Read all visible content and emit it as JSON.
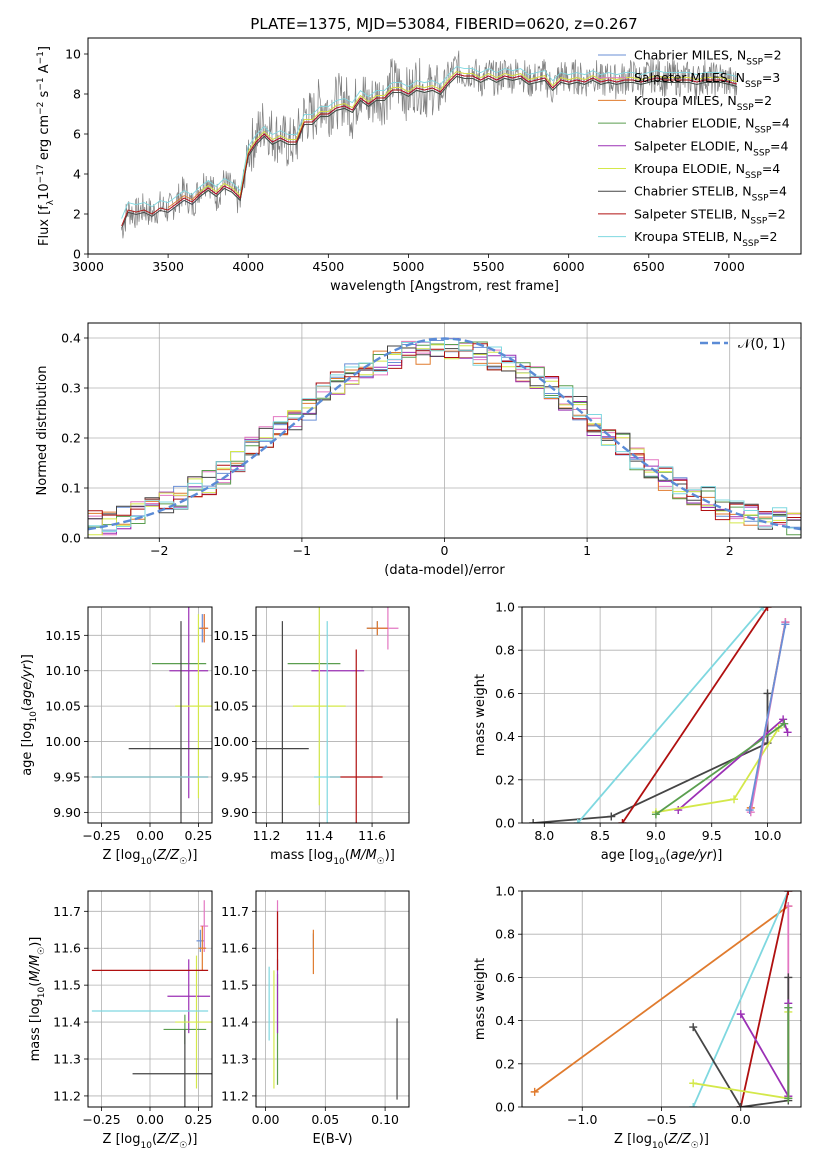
{
  "title": "PLATE=1375, MJD=53084, FIBERID=0620, z=0.267",
  "series_colors": {
    "Chabrier MILES": "#6a8fd6",
    "Salpeter MILES": "#e377c2",
    "Kroupa MILES": "#e07b2e",
    "Chabrier ELODIE": "#5a9e4f",
    "Salpeter ELODIE": "#9b30b5",
    "Kroupa ELODIE": "#d4e84a",
    "Chabrier STELIB": "#454545",
    "Salpeter STELIB": "#b01010",
    "Kroupa STELIB": "#7fd8e0"
  },
  "legend_labels": [
    {
      "name": "Chabrier MILES",
      "nssp": "2"
    },
    {
      "name": "Salpeter MILES",
      "nssp": "3"
    },
    {
      "name": "Kroupa MILES",
      "nssp": "2"
    },
    {
      "name": "Chabrier ELODIE",
      "nssp": "4"
    },
    {
      "name": "Salpeter ELODIE",
      "nssp": "4"
    },
    {
      "name": "Kroupa ELODIE",
      "nssp": "4"
    },
    {
      "name": "Chabrier STELIB",
      "nssp": "4"
    },
    {
      "name": "Salpeter STELIB",
      "nssp": "2"
    },
    {
      "name": "Kroupa STELIB",
      "nssp": "2"
    }
  ],
  "normal_legend": "𝒩(0, 1)",
  "chart_data": [
    {
      "id": "spectrum",
      "type": "line",
      "xlabel": "wavelength [Angstrom, rest frame]",
      "ylabel": "Flux [f_λ 10^-17 erg cm^-2 s^-1 A^-1]",
      "xlim": [
        3000,
        7450
      ],
      "ylim": [
        0,
        10.8
      ],
      "xticks": [
        3000,
        3500,
        4000,
        4500,
        5000,
        5500,
        6000,
        6500,
        7000
      ],
      "yticks": [
        0,
        2,
        4,
        6,
        8,
        10
      ],
      "data_observed": {
        "name": "data",
        "x": [
          3210,
          3250,
          3300,
          3350,
          3400,
          3450,
          3500,
          3550,
          3600,
          3650,
          3700,
          3750,
          3800,
          3850,
          3900,
          3950,
          4000,
          4050,
          4100,
          4150,
          4200,
          4250,
          4300,
          4350,
          4400,
          4450,
          4500,
          4550,
          4600,
          4650,
          4700,
          4750,
          4800,
          4850,
          4900,
          4950,
          5000,
          5050,
          5100,
          5150,
          5200,
          5250,
          5300,
          5350,
          5400,
          5450,
          5500,
          5550,
          5600,
          5650,
          5700,
          5750,
          5800,
          5850,
          5900,
          5950,
          6000,
          6050,
          6100,
          6150,
          6200,
          6250,
          6300,
          6350,
          6400,
          6450,
          6500,
          6550,
          6600,
          6650,
          6700,
          6750,
          6800,
          6850,
          6900,
          6950,
          7000,
          7050
        ],
        "y": [
          1.2,
          2.2,
          2.0,
          2.3,
          2.0,
          2.4,
          2.2,
          2.6,
          3.2,
          2.4,
          3.4,
          3.8,
          2.8,
          3.6,
          3.2,
          2.5,
          5.2,
          5.8,
          6.6,
          6.0,
          5.8,
          5.5,
          5.6,
          7.0,
          6.8,
          7.6,
          7.2,
          7.6,
          7.8,
          7.0,
          8.3,
          7.4,
          7.9,
          7.8,
          8.6,
          8.4,
          7.9,
          8.6,
          8.1,
          8.3,
          8.0,
          8.8,
          9.4,
          9.0,
          9.2,
          8.6,
          9.0,
          8.7,
          9.1,
          8.9,
          9.2,
          8.6,
          8.8,
          8.9,
          8.2,
          9.0,
          8.7,
          8.9,
          8.6,
          9.1,
          8.6,
          8.8,
          8.6,
          8.8,
          8.9,
          8.6,
          8.9,
          9.0,
          8.7,
          8.9,
          8.7,
          8.8,
          8.6,
          8.9,
          8.7,
          8.8,
          8.6,
          8.4
        ]
      },
      "model": {
        "x": [
          3210,
          3250,
          3300,
          3350,
          3400,
          3450,
          3500,
          3550,
          3600,
          3650,
          3700,
          3750,
          3800,
          3850,
          3900,
          3950,
          4000,
          4050,
          4100,
          4150,
          4200,
          4250,
          4300,
          4350,
          4400,
          4450,
          4500,
          4550,
          4600,
          4650,
          4700,
          4750,
          4800,
          4850,
          4900,
          4950,
          5000,
          5050,
          5100,
          5150,
          5200,
          5250,
          5300,
          5350,
          5400,
          5450,
          5500,
          5550,
          5600,
          5650,
          5700,
          5750,
          5800,
          5850,
          5900,
          5950,
          6000,
          6050,
          6100,
          6150,
          6200,
          6250,
          6300,
          6350,
          6400,
          6450,
          6500,
          6550,
          6600,
          6650,
          6700,
          6750,
          6800,
          6850,
          6900,
          6950,
          7000,
          7050
        ],
        "y": [
          1.4,
          2.2,
          2.1,
          2.2,
          2.0,
          2.3,
          2.2,
          2.5,
          2.8,
          2.6,
          3.0,
          3.3,
          3.0,
          3.4,
          3.2,
          2.8,
          5.0,
          5.6,
          6.0,
          5.6,
          5.8,
          5.6,
          5.6,
          6.6,
          6.6,
          7.0,
          7.0,
          7.3,
          7.4,
          7.2,
          7.8,
          7.5,
          7.8,
          7.8,
          8.2,
          8.2,
          8.0,
          8.3,
          8.2,
          8.3,
          8.1,
          8.6,
          9.0,
          8.9,
          8.9,
          8.7,
          8.9,
          8.7,
          8.9,
          8.8,
          8.9,
          8.6,
          8.7,
          8.8,
          8.3,
          8.7,
          8.6,
          8.7,
          8.6,
          8.8,
          8.6,
          8.7,
          8.6,
          8.7,
          8.7,
          8.6,
          8.7,
          8.8,
          8.7,
          8.7,
          8.7,
          8.7,
          8.6,
          8.7,
          8.7,
          8.7,
          8.6,
          8.5
        ]
      }
    },
    {
      "id": "residuals",
      "type": "step",
      "xlabel": "(data-model)/error",
      "ylabel": "Normed distribution",
      "xlim": [
        -2.5,
        2.5
      ],
      "ylim": [
        0,
        0.43
      ],
      "xticks": [
        -2,
        -1,
        0,
        1,
        2
      ],
      "yticks": [
        0.0,
        0.1,
        0.2,
        0.3,
        0.4
      ],
      "bin_edges_start": -2.5,
      "bin_width": 0.1,
      "hist": [
        0.03,
        0.03,
        0.04,
        0.05,
        0.06,
        0.07,
        0.08,
        0.1,
        0.11,
        0.13,
        0.15,
        0.18,
        0.2,
        0.22,
        0.24,
        0.26,
        0.29,
        0.31,
        0.33,
        0.34,
        0.35,
        0.36,
        0.37,
        0.37,
        0.38,
        0.38,
        0.37,
        0.37,
        0.36,
        0.35,
        0.33,
        0.32,
        0.3,
        0.28,
        0.26,
        0.23,
        0.21,
        0.19,
        0.16,
        0.14,
        0.12,
        0.1,
        0.09,
        0.08,
        0.06,
        0.05,
        0.05,
        0.04,
        0.04,
        0.03
      ]
    },
    {
      "id": "age_vs_Z",
      "type": "scatter",
      "xlabel": "Z [log10(Z/Z☉)]",
      "ylabel": "age [log10(age/yr)]",
      "xlim": [
        -0.32,
        0.32
      ],
      "ylim": [
        9.885,
        10.19
      ],
      "xticks": [
        -0.25,
        0.0,
        0.25
      ],
      "yticks": [
        9.9,
        9.95,
        10.0,
        10.05,
        10.1,
        10.15
      ],
      "points": [
        {
          "series": "Chabrier MILES",
          "x": 0.27,
          "y": 10.16,
          "xerr": 0.02,
          "yerr": 0.02
        },
        {
          "series": "Salpeter MILES",
          "x": 0.28,
          "y": 10.16,
          "xerr": 0.02,
          "yerr": 0.02
        },
        {
          "series": "Kroupa MILES",
          "x": 0.28,
          "y": 10.16,
          "xerr": 0.02,
          "yerr": 0.02
        },
        {
          "series": "Chabrier ELODIE",
          "x": 0.15,
          "y": 10.11,
          "xerr": 0.14,
          "yerr": 0.0
        },
        {
          "series": "Salpeter ELODIE",
          "x": 0.2,
          "y": 10.1,
          "xerr": 0.1,
          "yerr": 0.18
        },
        {
          "series": "Kroupa ELODIE",
          "x": 0.25,
          "y": 10.05,
          "xerr": 0.12,
          "yerr": 0.13
        },
        {
          "series": "Chabrier STELIB",
          "x": 0.16,
          "y": 9.99,
          "xerr": 0.27,
          "yerr": 0.18
        },
        {
          "series": "Salpeter STELIB",
          "x": 0.0,
          "y": 9.95,
          "xerr": 0.3,
          "yerr": 0.0
        },
        {
          "series": "Kroupa STELIB",
          "x": 0.0,
          "y": 9.95,
          "xerr": 0.3,
          "yerr": 0.0
        }
      ]
    },
    {
      "id": "age_vs_mass",
      "type": "scatter",
      "xlabel": "mass [log10(M/M☉)]",
      "ylabel": "",
      "xlim": [
        11.16,
        11.74
      ],
      "ylim": [
        9.885,
        10.19
      ],
      "xticks": [
        11.2,
        11.4,
        11.6
      ],
      "yticks": [
        9.9,
        9.95,
        10.0,
        10.05,
        10.1,
        10.15
      ],
      "points": [
        {
          "series": "Chabrier MILES",
          "x": 11.62,
          "y": 10.16,
          "xerr": 0.04,
          "yerr": 0.01
        },
        {
          "series": "Salpeter MILES",
          "x": 11.66,
          "y": 10.16,
          "xerr": 0.04,
          "yerr": 0.03
        },
        {
          "series": "Kroupa MILES",
          "x": 11.62,
          "y": 10.16,
          "xerr": 0.04,
          "yerr": 0.01
        },
        {
          "series": "Chabrier ELODIE",
          "x": 11.38,
          "y": 10.11,
          "xerr": 0.1,
          "yerr": 0.0
        },
        {
          "series": "Salpeter ELODIE",
          "x": 11.47,
          "y": 10.1,
          "xerr": 0.1,
          "yerr": 0.0
        },
        {
          "series": "Kroupa ELODIE",
          "x": 11.4,
          "y": 10.05,
          "xerr": 0.1,
          "yerr": 0.14
        },
        {
          "series": "Chabrier STELIB",
          "x": 11.26,
          "y": 9.99,
          "xerr": 0.1,
          "yerr": 0.18
        },
        {
          "series": "Salpeter STELIB",
          "x": 11.54,
          "y": 9.95,
          "xerr": 0.1,
          "yerr": 0.18
        },
        {
          "series": "Kroupa STELIB",
          "x": 11.43,
          "y": 9.95,
          "xerr": 0.05,
          "yerr": 0.22
        }
      ]
    },
    {
      "id": "weight_vs_age",
      "type": "line",
      "xlabel": "age [log10(age/yr)]",
      "ylabel": "mass weight",
      "xlim": [
        7.8,
        10.3
      ],
      "ylim": [
        0,
        1.0
      ],
      "xticks": [
        8.0,
        8.5,
        9.0,
        9.5,
        10.0
      ],
      "yticks": [
        0.0,
        0.2,
        0.4,
        0.6,
        0.8,
        1.0
      ],
      "series": [
        {
          "series": "Chabrier STELIB",
          "x": [
            7.9,
            8.6,
            10.0,
            10.0
          ],
          "y": [
            0.0,
            0.03,
            0.37,
            0.6
          ]
        },
        {
          "series": "Kroupa STELIB",
          "x": [
            8.3,
            9.96
          ],
          "y": [
            0.0,
            1.0
          ]
        },
        {
          "series": "Salpeter STELIB",
          "x": [
            8.7,
            10.0
          ],
          "y": [
            0.0,
            1.0
          ]
        },
        {
          "series": "Salpeter ELODIE",
          "x": [
            9.2,
            10.14,
            10.18
          ],
          "y": [
            0.06,
            0.48,
            0.42
          ]
        },
        {
          "series": "Kroupa ELODIE",
          "x": [
            9.0,
            9.7,
            10.1
          ],
          "y": [
            0.05,
            0.11,
            0.44
          ]
        },
        {
          "series": "Chabrier ELODIE",
          "x": [
            9.0,
            10.15
          ],
          "y": [
            0.04,
            0.46
          ]
        },
        {
          "series": "Kroupa MILES",
          "x": [
            9.85,
            10.16
          ],
          "y": [
            0.07,
            0.93
          ]
        },
        {
          "series": "Salpeter MILES",
          "x": [
            9.85,
            10.16
          ],
          "y": [
            0.05,
            0.93
          ]
        },
        {
          "series": "Chabrier MILES",
          "x": [
            9.84,
            10.16
          ],
          "y": [
            0.06,
            0.92
          ]
        }
      ]
    },
    {
      "id": "mass_vs_Z",
      "type": "scatter",
      "xlabel": "Z [log10(Z/Z☉)]",
      "ylabel": "mass [log10(M/M☉)]",
      "xlim": [
        -0.32,
        0.32
      ],
      "ylim": [
        11.17,
        11.755
      ],
      "xticks": [
        -0.25,
        0.0,
        0.25
      ],
      "yticks": [
        11.2,
        11.3,
        11.4,
        11.5,
        11.6,
        11.7
      ],
      "points": [
        {
          "series": "Chabrier MILES",
          "x": 0.26,
          "y": 11.62,
          "xerr": 0.02,
          "yerr": 0.03
        },
        {
          "series": "Salpeter MILES",
          "x": 0.28,
          "y": 11.66,
          "xerr": 0.02,
          "yerr": 0.07
        },
        {
          "series": "Kroupa MILES",
          "x": 0.27,
          "y": 11.6,
          "xerr": 0.02,
          "yerr": 0.06
        },
        {
          "series": "Chabrier ELODIE",
          "x": 0.18,
          "y": 11.38,
          "xerr": 0.11,
          "yerr": 0.04
        },
        {
          "series": "Salpeter ELODIE",
          "x": 0.2,
          "y": 11.47,
          "xerr": 0.11,
          "yerr": 0.1
        },
        {
          "series": "Kroupa ELODIE",
          "x": 0.24,
          "y": 11.4,
          "xerr": 0.11,
          "yerr": 0.18
        },
        {
          "series": "Chabrier STELIB",
          "x": 0.18,
          "y": 11.26,
          "xerr": 0.27,
          "yerr": 0.12
        },
        {
          "series": "Salpeter STELIB",
          "x": 0.0,
          "y": 11.54,
          "xerr": 0.3,
          "yerr": 0.0
        },
        {
          "series": "Kroupa STELIB",
          "x": 0.0,
          "y": 11.43,
          "xerr": 0.3,
          "yerr": 0.0
        }
      ]
    },
    {
      "id": "mass_vs_EBV",
      "type": "scatter",
      "xlabel": "E(B-V)",
      "ylabel": "",
      "xlim": [
        -0.008,
        0.12
      ],
      "ylim": [
        11.17,
        11.755
      ],
      "xticks": [
        0.0,
        0.05,
        0.1
      ],
      "yticks": [
        11.2,
        11.3,
        11.4,
        11.5,
        11.6,
        11.7
      ],
      "points": [
        {
          "series": "Chabrier MILES",
          "x": 0.04,
          "y": 11.62,
          "yerr": 0.02
        },
        {
          "series": "Salpeter MILES",
          "x": 0.01,
          "y": 11.66,
          "yerr": 0.07
        },
        {
          "series": "Kroupa MILES",
          "x": 0.04,
          "y": 11.59,
          "yerr": 0.06
        },
        {
          "series": "Chabrier ELODIE",
          "x": 0.01,
          "y": 11.38,
          "yerr": 0.15
        },
        {
          "series": "Salpeter ELODIE",
          "x": 0.01,
          "y": 11.47,
          "yerr": 0.1
        },
        {
          "series": "Kroupa ELODIE",
          "x": 0.007,
          "y": 11.38,
          "yerr": 0.16
        },
        {
          "series": "Chabrier STELIB",
          "x": 0.11,
          "y": 11.3,
          "yerr": 0.11
        },
        {
          "series": "Salpeter STELIB",
          "x": 0.01,
          "y": 11.62,
          "yerr": 0.08
        },
        {
          "series": "Kroupa STELIB",
          "x": 0.003,
          "y": 11.45,
          "yerr": 0.1
        }
      ]
    },
    {
      "id": "weight_vs_Z",
      "type": "line",
      "xlabel": "Z [log10(Z/Z☉)]",
      "ylabel": "mass weight",
      "xlim": [
        -1.38,
        0.38
      ],
      "ylim": [
        0,
        1.0
      ],
      "xticks": [
        -1.0,
        -0.5,
        0.0
      ],
      "yticks": [
        0.0,
        0.2,
        0.4,
        0.6,
        0.8,
        1.0
      ],
      "series": [
        {
          "series": "Kroupa MILES",
          "x": [
            -1.3,
            0.3
          ],
          "y": [
            0.07,
            0.93
          ]
        },
        {
          "series": "Salpeter MILES",
          "x": [
            0.3,
            0.3
          ],
          "y": [
            0.05,
            0.93
          ]
        },
        {
          "series": "Kroupa STELIB",
          "x": [
            -0.3,
            0.3
          ],
          "y": [
            0.0,
            1.0
          ]
        },
        {
          "series": "Salpeter STELIB",
          "x": [
            0.0,
            0.3
          ],
          "y": [
            0.0,
            1.0
          ]
        },
        {
          "series": "Chabrier STELIB",
          "x": [
            -0.3,
            0.0,
            0.3,
            0.3
          ],
          "y": [
            0.37,
            0.0,
            0.03,
            0.6
          ]
        },
        {
          "series": "Salpeter ELODIE",
          "x": [
            0.0,
            0.3,
            0.3
          ],
          "y": [
            0.43,
            0.05,
            0.48
          ]
        },
        {
          "series": "Kroupa ELODIE",
          "x": [
            -0.3,
            0.3,
            0.3
          ],
          "y": [
            0.11,
            0.04,
            0.44
          ]
        },
        {
          "series": "Chabrier ELODIE",
          "x": [
            0.3,
            0.3
          ],
          "y": [
            0.04,
            0.46
          ]
        }
      ]
    }
  ]
}
